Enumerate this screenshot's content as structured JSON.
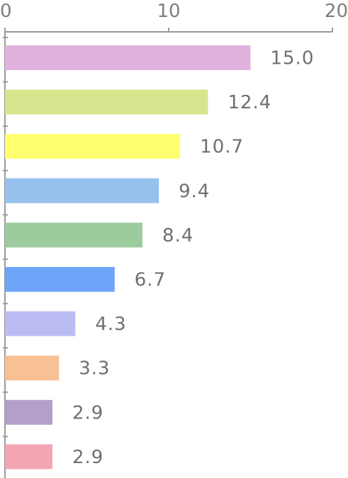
{
  "chart_data": {
    "type": "bar",
    "orientation": "horizontal",
    "values": [
      15.0,
      12.4,
      10.7,
      9.4,
      8.4,
      6.7,
      4.3,
      3.3,
      2.9,
      2.9
    ],
    "value_labels": [
      "15.0",
      "12.4",
      "10.7",
      "9.4",
      "8.4",
      "6.7",
      "4.3",
      "3.3",
      "2.9",
      "2.9"
    ],
    "colors": [
      "#e2b2de",
      "#d7e58e",
      "#ffff70",
      "#96c0ee",
      "#9ccc9e",
      "#6ea4f7",
      "#bcbcf5",
      "#f8c194",
      "#b2a0ca",
      "#f3a6b2"
    ],
    "xlim": [
      0,
      20
    ],
    "x_ticks": [
      0,
      10,
      20
    ],
    "x_tick_labels": [
      "0",
      "10",
      "20"
    ],
    "x_axis_position": "top",
    "grid": false,
    "title": "",
    "xlabel": "",
    "ylabel": ""
  }
}
